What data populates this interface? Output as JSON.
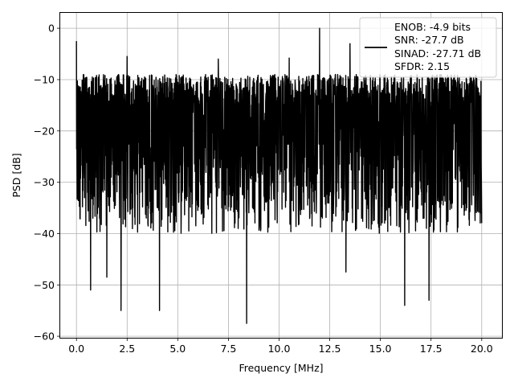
{
  "chart_data": {
    "type": "line",
    "title": "",
    "xlabel": "Frequency [MHz]",
    "ylabel": "PSD [dB]",
    "xlim": [
      -0.8,
      21.0
    ],
    "ylim": [
      -60.3,
      3.0
    ],
    "xticks": [
      0.0,
      2.5,
      5.0,
      7.5,
      10.0,
      12.5,
      15.0,
      17.5,
      20.0
    ],
    "xtick_labels": [
      "0.0",
      "2.5",
      "5.0",
      "7.5",
      "10.0",
      "12.5",
      "15.0",
      "17.5",
      "20.0"
    ],
    "yticks": [
      0,
      -10,
      -20,
      -30,
      -40,
      -50,
      -60
    ],
    "ytick_labels": [
      "0",
      "−10",
      "−20",
      "−30",
      "−40",
      "−50",
      "−60"
    ],
    "grid": true,
    "legend_position": "top-right",
    "legend_entries": [
      "ENOB: -4.9 bits",
      "SNR: -27.7 dB",
      "SINAD: -27.71 dB",
      "SFDR: 2.15"
    ],
    "series": [
      {
        "color": "#000000",
        "description": "Noise-like PSD spanning 0 to 20 MHz; upper envelope roughly -8 to -10 dB, lower envelope roughly -32 to -40 dB, with deep nulls listed below",
        "x_range": [
          0.0,
          20.0
        ],
        "upper_envelope": -9,
        "lower_envelope": -36,
        "peaks": [
          [
            0.0,
            -2.5
          ],
          [
            12.0,
            0.0
          ],
          [
            13.5,
            -3.0
          ],
          [
            2.5,
            -5.5
          ],
          [
            7.0,
            -6.0
          ],
          [
            10.5,
            -5.8
          ]
        ],
        "nulls": [
          [
            0.7,
            -51
          ],
          [
            1.5,
            -48.5
          ],
          [
            2.2,
            -55
          ],
          [
            4.1,
            -55
          ],
          [
            8.4,
            -57.5
          ],
          [
            13.3,
            -47.5
          ],
          [
            16.2,
            -54
          ],
          [
            17.4,
            -53
          ]
        ]
      }
    ]
  }
}
